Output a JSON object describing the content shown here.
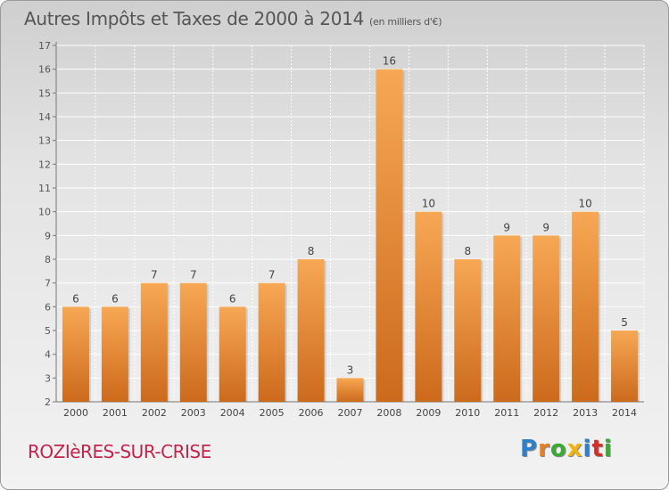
{
  "title": "Autres Impôts et Taxes de 2000 à 2014",
  "title_unit": "(en milliers d'€)",
  "commune": "ROZIèRES-SUR-CRISE",
  "logo": {
    "letters": [
      "P",
      "r",
      "o",
      "x",
      "i",
      "t",
      "i"
    ],
    "colors": [
      "#2f7fc9",
      "#e67e22",
      "#3aa935",
      "#f0b40f",
      "#2f7fc9",
      "#d0312d",
      "#3aa935"
    ]
  },
  "chart_data": {
    "type": "bar",
    "categories": [
      "2000",
      "2001",
      "2002",
      "2003",
      "2004",
      "2005",
      "2006",
      "2007",
      "2008",
      "2009",
      "2010",
      "2011",
      "2012",
      "2013",
      "2014"
    ],
    "values": [
      6,
      6,
      7,
      7,
      6,
      7,
      8,
      3,
      16,
      10,
      8,
      9,
      9,
      10,
      5
    ],
    "ylim": [
      2,
      17
    ],
    "yticks": [
      2,
      3,
      4,
      5,
      6,
      7,
      8,
      9,
      10,
      11,
      12,
      13,
      14,
      15,
      16,
      17
    ],
    "grid": true,
    "colors": {
      "bar_top": "#f7a854",
      "bar_bottom": "#cc6a1c"
    }
  }
}
